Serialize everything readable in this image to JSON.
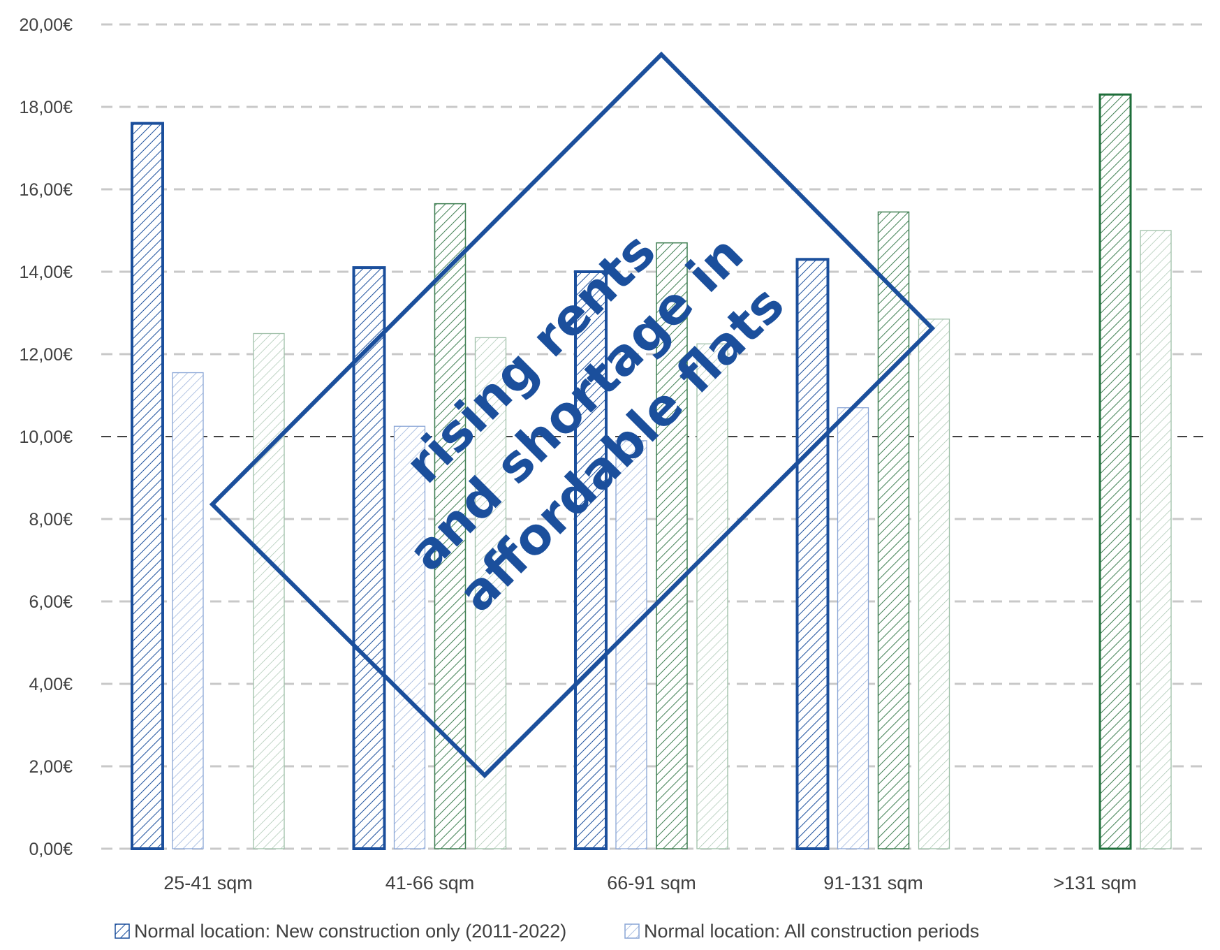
{
  "colors": {
    "blue": "#1b4f9c",
    "green": "#1e6e3a",
    "grid": "#c8c8c8",
    "reference": "#000000"
  },
  "chart_data": {
    "type": "bar",
    "title": "",
    "xlabel": "",
    "ylabel": "",
    "ylim": [
      0,
      20
    ],
    "y_ticks": [
      "0,00€",
      "2,00€",
      "4,00€",
      "6,00€",
      "8,00€",
      "10,00€",
      "12,00€",
      "14,00€",
      "16,00€",
      "18,00€",
      "20,00€"
    ],
    "grid": true,
    "reference_line": 10,
    "legend_position": "bottom",
    "categories": [
      "25-41 sqm",
      "41-66 sqm",
      "66-91 sqm",
      "91-131 sqm",
      ">131 sqm"
    ],
    "series": [
      {
        "name": "Normal location: New construction only (2011-2022)",
        "values": [
          17.6,
          14.1,
          14.0,
          14.3,
          null
        ],
        "color": "#1b4f9c",
        "style": "bold-hatch"
      },
      {
        "name": "Normal location: All construction periods",
        "values": [
          11.55,
          10.25,
          9.9,
          10.7,
          null
        ],
        "color": "#1b4f9c",
        "style": "light-hatch"
      },
      {
        "name": "",
        "values": [
          null,
          15.65,
          14.7,
          15.45,
          18.3
        ],
        "color": "#1e6e3a",
        "style": "bold-hatch"
      },
      {
        "name": "",
        "values": [
          12.5,
          12.4,
          12.25,
          12.85,
          15.0
        ],
        "color": "#1e6e3a",
        "style": "light-hatch"
      }
    ]
  },
  "stamp": {
    "lines": [
      "rising rents",
      "and shortage in",
      "affordable flats"
    ]
  },
  "legend": [
    {
      "label": "Normal location: New construction only (2011-2022)"
    },
    {
      "label": "Normal location: All construction periods"
    }
  ]
}
